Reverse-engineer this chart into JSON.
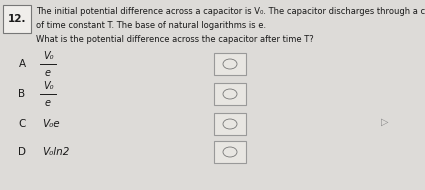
{
  "question_number": "12.",
  "question_text_line1": "The initial potential difference across a capacitor is V₀. The capacitor discharges through a circuit",
  "question_text_line2": "of time constant T. The base of natural logarithms is e.",
  "sub_question": "What is the potential difference across the capacitor after time T?",
  "options": [
    {
      "label": "A",
      "numerator": "V₀",
      "denominator": "e",
      "is_fraction": true
    },
    {
      "label": "B",
      "numerator": "V₀",
      "denominator": "e",
      "is_fraction": true
    },
    {
      "label": "C",
      "text": "V₀e",
      "is_fraction": false
    },
    {
      "label": "D",
      "text": "V₀ln2",
      "is_fraction": false
    }
  ],
  "background_color": "#dddbd8",
  "inner_bg": "#e8e6e2",
  "box_color": "#e8e6e2",
  "box_border": "#999999",
  "text_color": "#1a1a1a",
  "font_size_main": 6.0,
  "font_size_options": 7.5,
  "font_size_number": 7.5,
  "num_box_color": "#f0eeeb"
}
